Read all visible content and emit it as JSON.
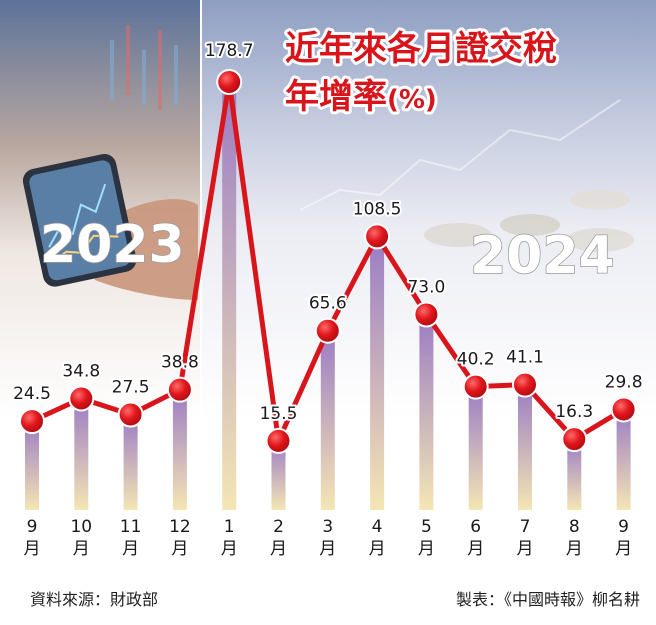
{
  "chart_data": {
    "type": "bar+line",
    "title_line1": "近年來各月證交稅",
    "title_line2": "年增率",
    "title_unit": "(%)",
    "year_labels": [
      "2023",
      "2024"
    ],
    "categories": [
      "9\n月",
      "10\n月",
      "11\n月",
      "12\n月",
      "1\n月",
      "2\n月",
      "3\n月",
      "4\n月",
      "5\n月",
      "6\n月",
      "7\n月",
      "8\n月",
      "9\n月"
    ],
    "series": [
      {
        "values": [
          24.5,
          34.8,
          27.5,
          38.8,
          178.7,
          15.5,
          65.6,
          108.5,
          73.0,
          40.2,
          41.1,
          16.3,
          29.8
        ],
        "value_labels": [
          "24.5",
          "34.8",
          "27.5",
          "38.8",
          "178.7",
          "15.5",
          "65.6",
          "108.5",
          "73.0",
          "40.2",
          "41.1",
          "16.3",
          "29.8"
        ]
      }
    ],
    "ylim": [
      0,
      190
    ],
    "grid": false,
    "legend": "none",
    "colors": {
      "line": "#d9151c",
      "marker": "#d9151c",
      "bar_top": "#9b7bc4",
      "bar_bottom": "#f4e6b4",
      "title": "#d9151c"
    }
  },
  "footer": {
    "source": "資料來源：財政部",
    "credit": "製表：《中國時報》柳名耕"
  },
  "background": {
    "left_photo": "smartphone-stock-app-photo",
    "right_photo": "coins-and-stock-chart-photo"
  }
}
